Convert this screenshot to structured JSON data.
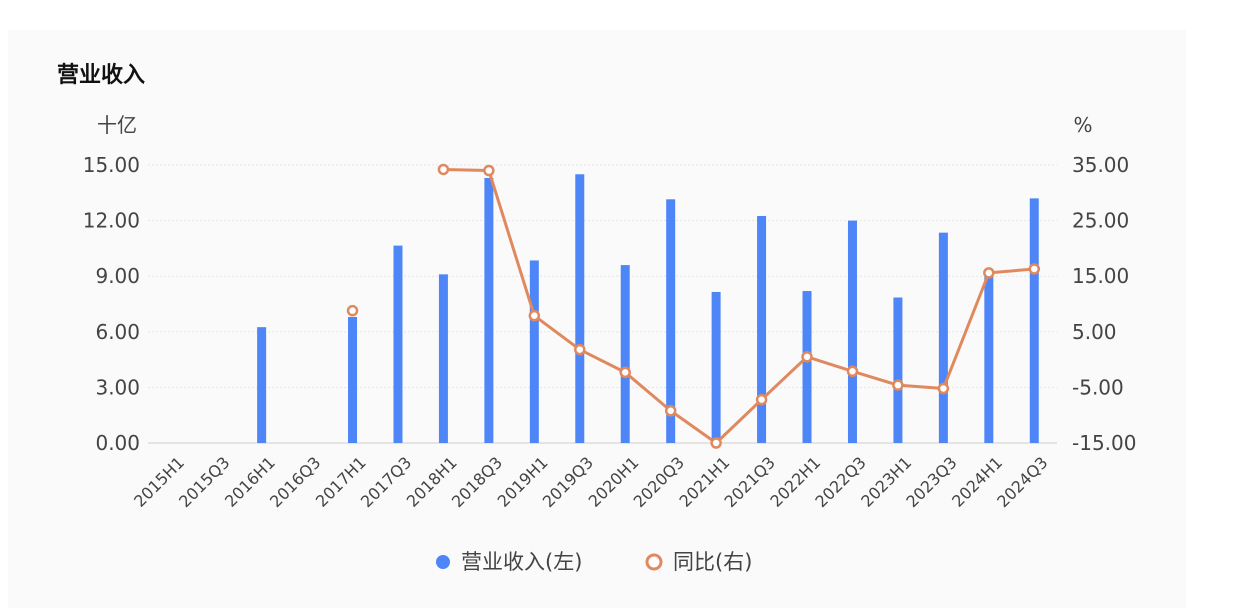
{
  "chart_data": {
    "type": "bar",
    "title": "营业收入",
    "left_unit": "十亿",
    "right_unit": "%",
    "categories": [
      "2015H1",
      "2015Q3",
      "2016H1",
      "2016Q3",
      "2017H1",
      "2017Q3",
      "2018H1",
      "2018Q3",
      "2019H1",
      "2019Q3",
      "2020H1",
      "2020Q3",
      "2021H1",
      "2021Q3",
      "2022H1",
      "2022Q3",
      "2023H1",
      "2023Q3",
      "2024H1",
      "2024Q3"
    ],
    "left_axis": {
      "ylim": [
        0,
        15
      ],
      "ticks": [
        "0.00",
        "3.00",
        "6.00",
        "9.00",
        "12.00",
        "15.00"
      ]
    },
    "right_axis": {
      "ylim": [
        -15,
        35
      ],
      "ticks": [
        "-15.00",
        "-5.00",
        "5.00",
        "15.00",
        "25.00",
        "35.00"
      ]
    },
    "series": [
      {
        "name": "营业收入(左)",
        "type": "bar",
        "axis": "left",
        "color": "#4f86f7",
        "values": [
          null,
          null,
          6.25,
          null,
          6.8,
          10.65,
          9.1,
          14.3,
          9.85,
          14.5,
          9.6,
          13.15,
          8.15,
          12.25,
          8.2,
          12.0,
          7.85,
          11.35,
          9.2,
          13.2
        ]
      },
      {
        "name": "同比(右)",
        "type": "line",
        "axis": "right",
        "color": "#e0895f",
        "values": [
          null,
          null,
          null,
          null,
          8.8,
          null,
          34.2,
          34.0,
          7.9,
          1.8,
          -2.3,
          -9.2,
          -15.0,
          -7.2,
          0.5,
          -2.1,
          -4.6,
          -5.2,
          15.6,
          16.3
        ]
      }
    ],
    "legend": {
      "position": "bottom"
    },
    "grid": true
  }
}
